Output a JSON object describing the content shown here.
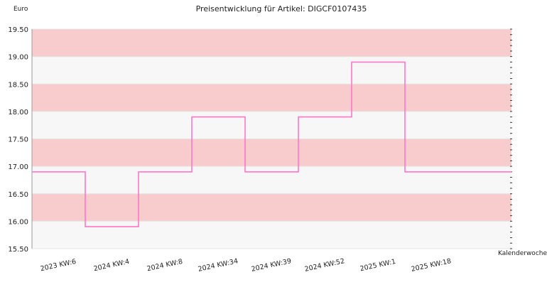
{
  "chart_data": {
    "type": "line",
    "step": true,
    "title": "Preisentwicklung für Artikel: DIGCF0107435",
    "ylabel": "Euro",
    "xlabel": "Kalenderwoche",
    "ylim": [
      15.5,
      19.5
    ],
    "y_ticks": [
      "15.50",
      "16.00",
      "16.50",
      "17.00",
      "17.50",
      "18.00",
      "18.50",
      "19.00",
      "19.50"
    ],
    "categories": [
      "2023 KW:6",
      "2024 KW:4",
      "2024 KW:8",
      "2024 KW:34",
      "2024 KW:39",
      "2024 KW:52",
      "2025 KW:1",
      "2025 KW:18"
    ],
    "series": [
      {
        "values": [
          16.9,
          15.9,
          16.9,
          17.9,
          16.9,
          17.9,
          18.9,
          16.9
        ]
      }
    ],
    "band_colors": [
      "#f7f7f7",
      "#f8cccc"
    ],
    "line_color": "#ff77c6",
    "grid": true,
    "legend": "none"
  }
}
